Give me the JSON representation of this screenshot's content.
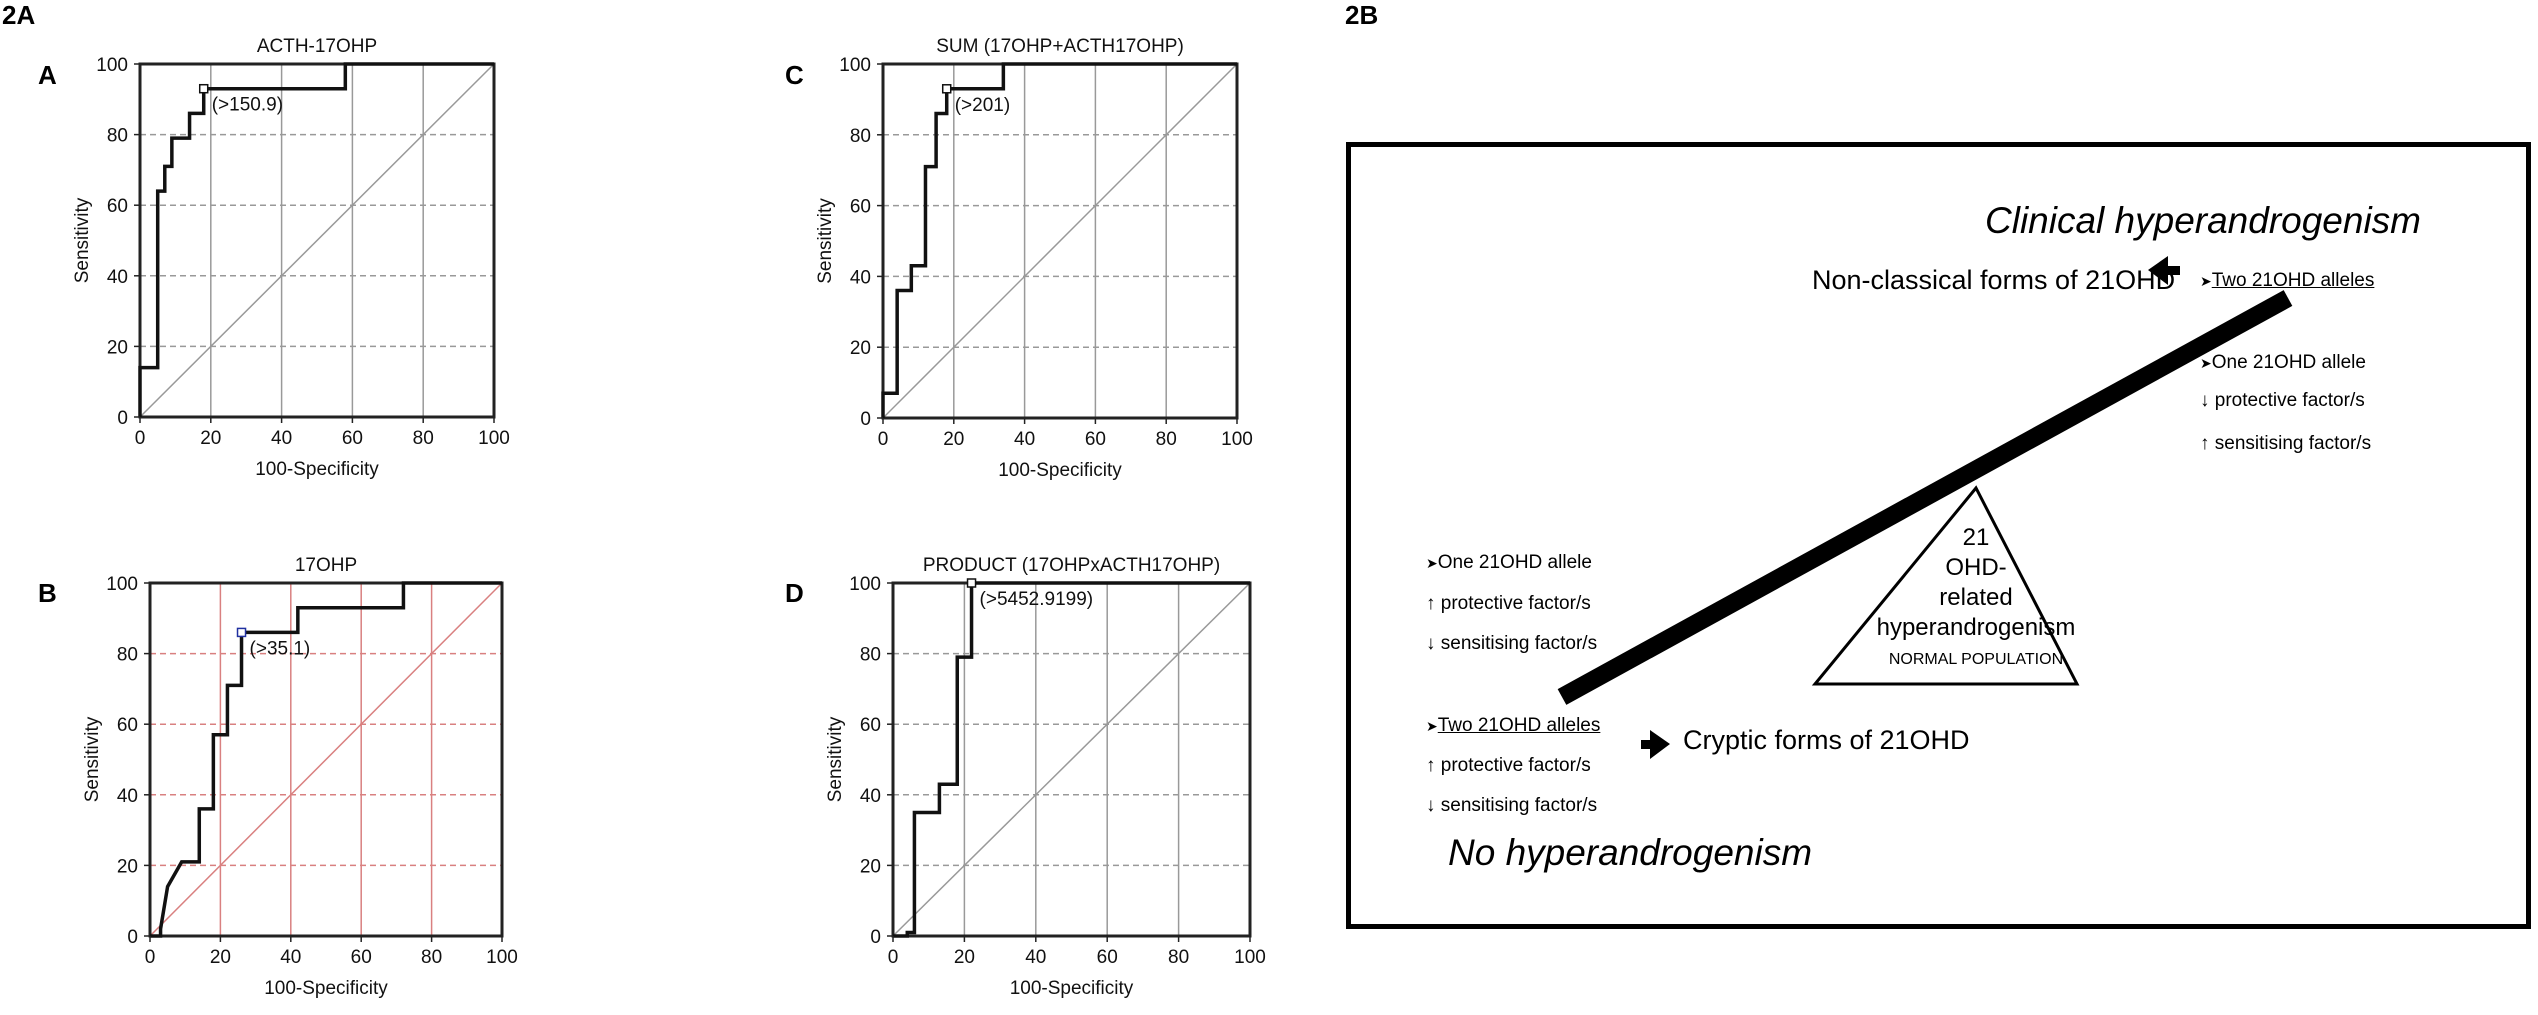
{
  "figure_labels": {
    "left": "2A",
    "right": "2B"
  },
  "chart_data": [
    {
      "type": "line",
      "panel": "A",
      "title": "ACTH-17OHP",
      "xlabel": "100-Specificity",
      "ylabel": "Sensitivity",
      "xlim": [
        0,
        100
      ],
      "ylim": [
        0,
        100
      ],
      "xticks": [
        "0",
        "20",
        "40",
        "60",
        "80",
        "100"
      ],
      "yticks": [
        "0",
        "20",
        "40",
        "60",
        "80",
        "100"
      ],
      "grid": true,
      "grid_color": "#999999",
      "diagonal": true,
      "annotation": "(>150.9)",
      "cutoff_point": [
        18,
        93
      ],
      "roc_x": [
        0,
        0,
        5,
        5,
        7,
        7,
        9,
        9,
        14,
        14,
        18,
        18,
        58,
        58,
        100
      ],
      "roc_y": [
        0,
        14,
        14,
        64,
        64,
        71,
        71,
        79,
        79,
        86,
        86,
        93,
        93,
        100,
        100
      ]
    },
    {
      "type": "line",
      "panel": "B",
      "title": "17OHP",
      "xlabel": "100-Specificity",
      "ylabel": "Sensitivity",
      "xlim": [
        0,
        100
      ],
      "ylim": [
        0,
        100
      ],
      "xticks": [
        "0",
        "20",
        "40",
        "60",
        "80",
        "100"
      ],
      "yticks": [
        "0",
        "20",
        "40",
        "60",
        "80",
        "100"
      ],
      "grid": true,
      "grid_color": "#d98080",
      "diagonal": true,
      "annotation": "(>35.1)",
      "cutoff_point": [
        26,
        86
      ],
      "roc_x": [
        0,
        3,
        3,
        5,
        5,
        9,
        9,
        14,
        14,
        18,
        18,
        22,
        22,
        26,
        26,
        34,
        34,
        42,
        42,
        72,
        72,
        100
      ],
      "roc_y": [
        0,
        0,
        2,
        14,
        14,
        21,
        21,
        21,
        36,
        36,
        57,
        57,
        71,
        71,
        86,
        86,
        86,
        86,
        93,
        93,
        100,
        100
      ]
    },
    {
      "type": "line",
      "panel": "C",
      "title": "SUM (17OHP+ACTH17OHP)",
      "xlabel": "100-Specificity",
      "ylabel": "Sensitivity",
      "xlim": [
        0,
        100
      ],
      "ylim": [
        0,
        100
      ],
      "xticks": [
        "0",
        "20",
        "40",
        "60",
        "80",
        "100"
      ],
      "yticks": [
        "0",
        "20",
        "40",
        "60",
        "80",
        "100"
      ],
      "grid": true,
      "grid_color": "#999999",
      "diagonal": true,
      "annotation": "(>201)",
      "cutoff_point": [
        18,
        93
      ],
      "roc_x": [
        0,
        0,
        4,
        4,
        8,
        8,
        12,
        12,
        15,
        15,
        18,
        18,
        34,
        34,
        100
      ],
      "roc_y": [
        0,
        7,
        7,
        36,
        36,
        43,
        43,
        71,
        71,
        86,
        86,
        93,
        93,
        100,
        100
      ]
    },
    {
      "type": "line",
      "panel": "D",
      "title": "PRODUCT (17OHPxACTH17OHP)",
      "xlabel": "100-Specificity",
      "ylabel": "Sensitivity",
      "xlim": [
        0,
        100
      ],
      "ylim": [
        0,
        100
      ],
      "xticks": [
        "0",
        "20",
        "40",
        "60",
        "80",
        "100"
      ],
      "yticks": [
        "0",
        "20",
        "40",
        "60",
        "80",
        "100"
      ],
      "grid": true,
      "grid_color": "#999999",
      "diagonal": true,
      "annotation": "(>5452.9199)",
      "cutoff_point": [
        22,
        100
      ],
      "roc_x": [
        0,
        4,
        4,
        6,
        6,
        13,
        13,
        18,
        18,
        22,
        22,
        100
      ],
      "roc_y": [
        0,
        0,
        1,
        1,
        35,
        35,
        43,
        43,
        79,
        79,
        100,
        100
      ]
    }
  ],
  "diagram": {
    "top_title": "Clinical hyperandrogenism",
    "bottom_title": "No hyperandrogenism",
    "non_classical": "Non-classical forms of 21OHD",
    "cryptic": "Cryptic forms of 21OHD",
    "right_two_alleles": "Two 21OHD alleles",
    "right_one_allele": "One 21OHD allele",
    "right_protective": "↓ protective factor/s",
    "right_sensitising": "↑ sensitising factor/s",
    "left_one_allele": "One 21OHD allele",
    "left_protective_1": "↑ protective factor/s",
    "left_sensitising_1": "↓ sensitising factor/s",
    "left_two_alleles": "Two 21OHD alleles",
    "left_protective_2": "↑ protective factor/s",
    "left_sensitising_2": "↓ sensitising factor/s",
    "triangle_line1": "21",
    "triangle_line2": "OHD-",
    "triangle_line3": "related",
    "triangle_line4": "hyperandrogenism",
    "triangle_line5": "NORMAL POPULATION",
    "bullet_glyph": "➤"
  }
}
